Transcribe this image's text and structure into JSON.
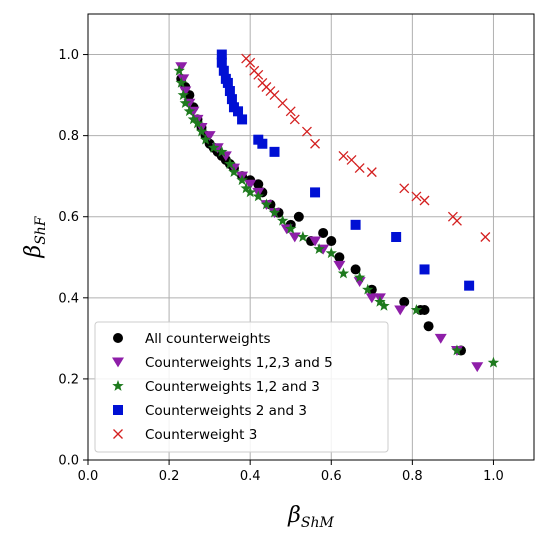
{
  "chart_data": {
    "type": "scatter",
    "title": "",
    "xlabel": {
      "symbol": "β",
      "sub": "ShM"
    },
    "ylabel": {
      "symbol": "β",
      "sub": "ShF"
    },
    "xlim": [
      0.0,
      1.1
    ],
    "ylim": [
      0.0,
      1.1
    ],
    "xticks": [
      "0.0",
      "0.2",
      "0.4",
      "0.6",
      "0.8",
      "1.0"
    ],
    "yticks": [
      "0.0",
      "0.2",
      "0.4",
      "0.6",
      "0.8",
      "1.0"
    ],
    "grid": true,
    "legend": "lower-left",
    "series": [
      {
        "name": "All counterweights",
        "marker": "circle",
        "color": "#000000",
        "points": [
          [
            0.23,
            0.94
          ],
          [
            0.24,
            0.92
          ],
          [
            0.25,
            0.9
          ],
          [
            0.26,
            0.87
          ],
          [
            0.27,
            0.84
          ],
          [
            0.28,
            0.82
          ],
          [
            0.29,
            0.8
          ],
          [
            0.3,
            0.78
          ],
          [
            0.31,
            0.77
          ],
          [
            0.32,
            0.76
          ],
          [
            0.33,
            0.75
          ],
          [
            0.34,
            0.74
          ],
          [
            0.35,
            0.73
          ],
          [
            0.36,
            0.72
          ],
          [
            0.38,
            0.7
          ],
          [
            0.4,
            0.69
          ],
          [
            0.42,
            0.68
          ],
          [
            0.43,
            0.66
          ],
          [
            0.45,
            0.63
          ],
          [
            0.47,
            0.61
          ],
          [
            0.5,
            0.58
          ],
          [
            0.52,
            0.6
          ],
          [
            0.55,
            0.54
          ],
          [
            0.58,
            0.56
          ],
          [
            0.6,
            0.54
          ],
          [
            0.62,
            0.5
          ],
          [
            0.66,
            0.47
          ],
          [
            0.7,
            0.42
          ],
          [
            0.78,
            0.39
          ],
          [
            0.82,
            0.37
          ],
          [
            0.83,
            0.37
          ],
          [
            0.84,
            0.33
          ],
          [
            0.92,
            0.27
          ]
        ]
      },
      {
        "name": "Counterweights 1,2,3 and 5",
        "marker": "triangle-down",
        "color": "#8e1ea8",
        "points": [
          [
            0.23,
            0.97
          ],
          [
            0.235,
            0.94
          ],
          [
            0.24,
            0.91
          ],
          [
            0.25,
            0.88
          ],
          [
            0.26,
            0.86
          ],
          [
            0.27,
            0.84
          ],
          [
            0.28,
            0.82
          ],
          [
            0.3,
            0.8
          ],
          [
            0.32,
            0.77
          ],
          [
            0.34,
            0.75
          ],
          [
            0.36,
            0.72
          ],
          [
            0.38,
            0.7
          ],
          [
            0.4,
            0.68
          ],
          [
            0.42,
            0.66
          ],
          [
            0.44,
            0.63
          ],
          [
            0.46,
            0.61
          ],
          [
            0.49,
            0.57
          ],
          [
            0.51,
            0.55
          ],
          [
            0.56,
            0.54
          ],
          [
            0.58,
            0.52
          ],
          [
            0.62,
            0.48
          ],
          [
            0.67,
            0.44
          ],
          [
            0.7,
            0.4
          ],
          [
            0.72,
            0.4
          ],
          [
            0.77,
            0.37
          ],
          [
            0.87,
            0.3
          ],
          [
            0.91,
            0.27
          ],
          [
            0.96,
            0.23
          ]
        ]
      },
      {
        "name": "Counterweights 1,2 and 3",
        "marker": "star",
        "color": "#1e7a1e",
        "points": [
          [
            0.225,
            0.96
          ],
          [
            0.23,
            0.93
          ],
          [
            0.235,
            0.9
          ],
          [
            0.24,
            0.88
          ],
          [
            0.25,
            0.86
          ],
          [
            0.26,
            0.84
          ],
          [
            0.27,
            0.83
          ],
          [
            0.28,
            0.81
          ],
          [
            0.29,
            0.79
          ],
          [
            0.31,
            0.77
          ],
          [
            0.33,
            0.76
          ],
          [
            0.35,
            0.73
          ],
          [
            0.36,
            0.71
          ],
          [
            0.38,
            0.69
          ],
          [
            0.39,
            0.67
          ],
          [
            0.4,
            0.66
          ],
          [
            0.42,
            0.65
          ],
          [
            0.44,
            0.63
          ],
          [
            0.46,
            0.61
          ],
          [
            0.48,
            0.59
          ],
          [
            0.5,
            0.57
          ],
          [
            0.53,
            0.55
          ],
          [
            0.57,
            0.52
          ],
          [
            0.6,
            0.51
          ],
          [
            0.63,
            0.46
          ],
          [
            0.67,
            0.45
          ],
          [
            0.69,
            0.42
          ],
          [
            0.72,
            0.39
          ],
          [
            0.73,
            0.38
          ],
          [
            0.81,
            0.37
          ],
          [
            0.91,
            0.27
          ],
          [
            1.0,
            0.24
          ]
        ]
      },
      {
        "name": "Counterweights 2 and 3",
        "marker": "square",
        "color": "#0010d4",
        "points": [
          [
            0.33,
            1.0
          ],
          [
            0.33,
            0.98
          ],
          [
            0.335,
            0.96
          ],
          [
            0.34,
            0.94
          ],
          [
            0.345,
            0.93
          ],
          [
            0.35,
            0.91
          ],
          [
            0.355,
            0.89
          ],
          [
            0.36,
            0.87
          ],
          [
            0.37,
            0.86
          ],
          [
            0.38,
            0.84
          ],
          [
            0.42,
            0.79
          ],
          [
            0.43,
            0.78
          ],
          [
            0.46,
            0.76
          ],
          [
            0.56,
            0.66
          ],
          [
            0.66,
            0.58
          ],
          [
            0.76,
            0.55
          ],
          [
            0.83,
            0.47
          ],
          [
            0.94,
            0.43
          ]
        ]
      },
      {
        "name": "Counterweight 3",
        "marker": "x",
        "color": "#d42020",
        "points": [
          [
            0.39,
            0.99
          ],
          [
            0.4,
            0.98
          ],
          [
            0.41,
            0.96
          ],
          [
            0.42,
            0.95
          ],
          [
            0.43,
            0.93
          ],
          [
            0.44,
            0.92
          ],
          [
            0.45,
            0.91
          ],
          [
            0.46,
            0.9
          ],
          [
            0.48,
            0.88
          ],
          [
            0.5,
            0.86
          ],
          [
            0.51,
            0.84
          ],
          [
            0.54,
            0.81
          ],
          [
            0.56,
            0.78
          ],
          [
            0.63,
            0.75
          ],
          [
            0.65,
            0.74
          ],
          [
            0.67,
            0.72
          ],
          [
            0.7,
            0.71
          ],
          [
            0.78,
            0.67
          ],
          [
            0.81,
            0.65
          ],
          [
            0.83,
            0.64
          ],
          [
            0.9,
            0.6
          ],
          [
            0.91,
            0.59
          ],
          [
            0.98,
            0.55
          ]
        ]
      }
    ]
  }
}
